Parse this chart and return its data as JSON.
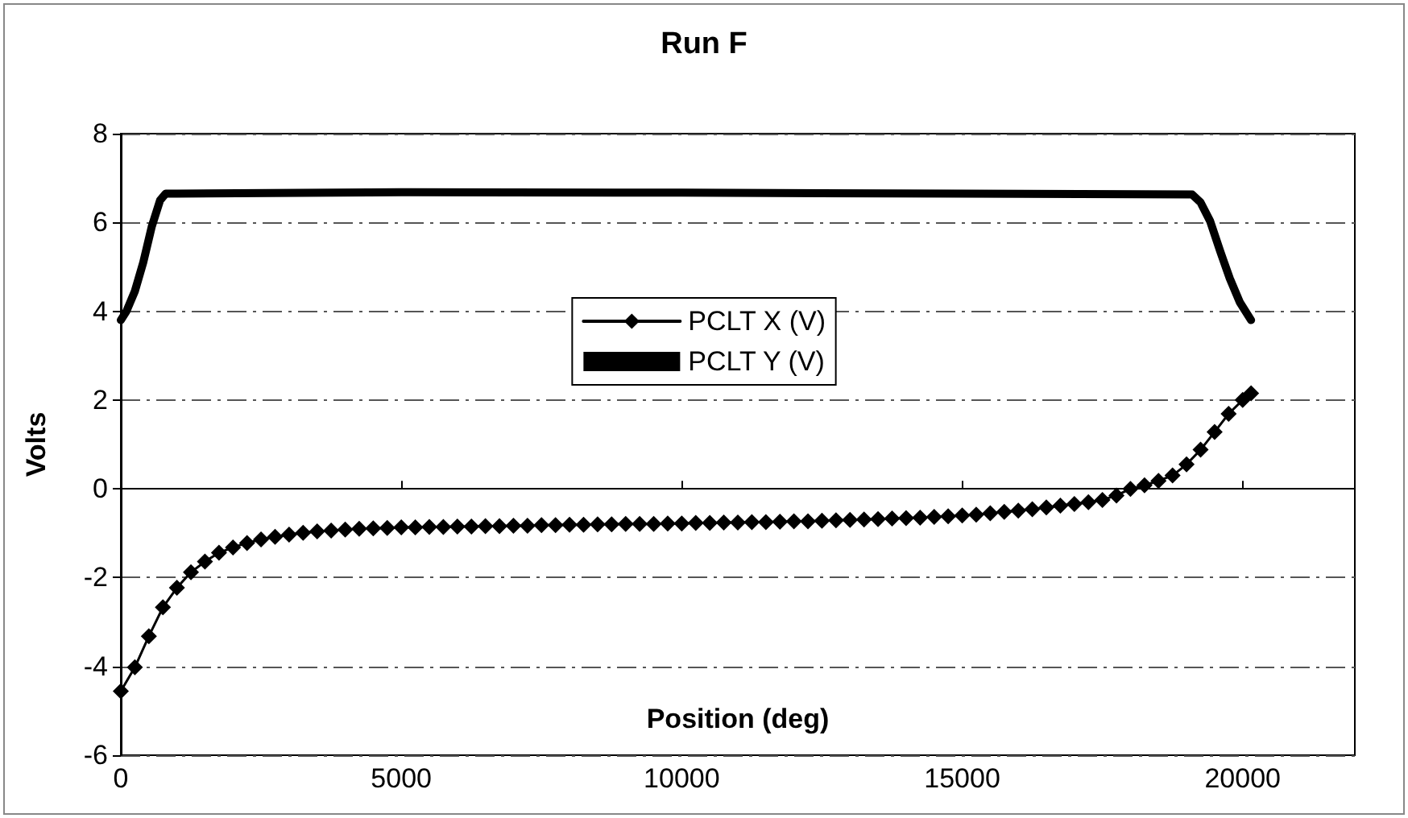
{
  "chart_data": {
    "type": "line",
    "title": "Run F",
    "xlabel": "Position (deg)",
    "ylabel": "Volts",
    "xlim": [
      0,
      22000
    ],
    "xticks": [
      0,
      5000,
      10000,
      15000,
      20000
    ],
    "ylim": [
      -6,
      8
    ],
    "yticks": [
      -6,
      -4,
      -2,
      0,
      2,
      4,
      6,
      8
    ],
    "grid": "y",
    "legend": "center",
    "line_style": "solid",
    "series": [
      {
        "name": "PCLT X (V)",
        "color": "#000000",
        "marker": "diamond",
        "x": [
          0,
          250,
          500,
          750,
          1000,
          1250,
          1500,
          1750,
          2000,
          2250,
          2500,
          2750,
          3000,
          3250,
          3500,
          3750,
          4000,
          4250,
          4500,
          4750,
          5000,
          5250,
          5500,
          5750,
          6000,
          6250,
          6500,
          6750,
          7000,
          7250,
          7500,
          7750,
          8000,
          8250,
          8500,
          8750,
          9000,
          9250,
          9500,
          9750,
          10000,
          10250,
          10500,
          10750,
          11000,
          11250,
          11500,
          11750,
          12000,
          12250,
          12500,
          12750,
          13000,
          13250,
          13500,
          13750,
          14000,
          14250,
          14500,
          14750,
          15000,
          15250,
          15500,
          15750,
          16000,
          16250,
          16500,
          16750,
          17000,
          17250,
          17500,
          17750,
          18000,
          18250,
          18500,
          18750,
          19000,
          19250,
          19500,
          19750,
          20000,
          20150
        ],
        "values": [
          -4.56,
          -4.02,
          -3.32,
          -2.67,
          -2.23,
          -1.88,
          -1.64,
          -1.44,
          -1.32,
          -1.22,
          -1.14,
          -1.08,
          -1.03,
          -0.99,
          -0.96,
          -0.94,
          -0.92,
          -0.9,
          -0.89,
          -0.88,
          -0.87,
          -0.87,
          -0.86,
          -0.86,
          -0.85,
          -0.85,
          -0.84,
          -0.84,
          -0.83,
          -0.83,
          -0.82,
          -0.82,
          -0.81,
          -0.81,
          -0.8,
          -0.8,
          -0.79,
          -0.79,
          -0.79,
          -0.78,
          -0.78,
          -0.77,
          -0.77,
          -0.76,
          -0.76,
          -0.75,
          -0.75,
          -0.74,
          -0.73,
          -0.73,
          -0.72,
          -0.71,
          -0.7,
          -0.69,
          -0.68,
          -0.67,
          -0.66,
          -0.65,
          -0.63,
          -0.62,
          -0.6,
          -0.58,
          -0.55,
          -0.52,
          -0.49,
          -0.46,
          -0.42,
          -0.38,
          -0.34,
          -0.3,
          -0.25,
          -0.15,
          0,
          0.08,
          0.18,
          0.3,
          0.55,
          0.88,
          1.28,
          1.69,
          2.0,
          2.15
        ]
      },
      {
        "name": "PCLT Y (V)",
        "color": "#000000",
        "marker": "none",
        "x": [
          0,
          100,
          250,
          400,
          550,
          700,
          800,
          1000,
          5000,
          10000,
          15000,
          19100,
          19250,
          19420,
          19600,
          19770,
          19950,
          20150
        ],
        "values": [
          3.8,
          4.0,
          4.45,
          5.1,
          5.9,
          6.5,
          6.65,
          6.65,
          6.68,
          6.67,
          6.65,
          6.63,
          6.45,
          6.03,
          5.35,
          4.74,
          4.2,
          3.8
        ]
      }
    ]
  }
}
